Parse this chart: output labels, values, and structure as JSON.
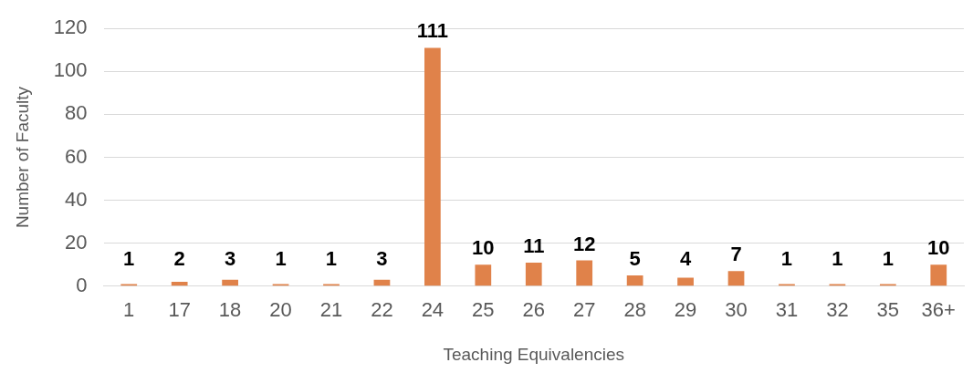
{
  "chart_data": {
    "type": "bar",
    "xlabel": "Teaching Equivalencies",
    "ylabel": "Number of Faculty",
    "categories": [
      "1",
      "17",
      "18",
      "20",
      "21",
      "22",
      "24",
      "25",
      "26",
      "27",
      "28",
      "29",
      "30",
      "31",
      "32",
      "35",
      "36+"
    ],
    "values": [
      1,
      2,
      3,
      1,
      1,
      3,
      111,
      10,
      11,
      12,
      5,
      4,
      7,
      1,
      1,
      1,
      10
    ],
    "color": "#e0824a",
    "ylim": [
      0,
      120
    ],
    "yticks": [
      0,
      20,
      40,
      60,
      80,
      100,
      120
    ],
    "grid": "y",
    "data_labels": true
  }
}
